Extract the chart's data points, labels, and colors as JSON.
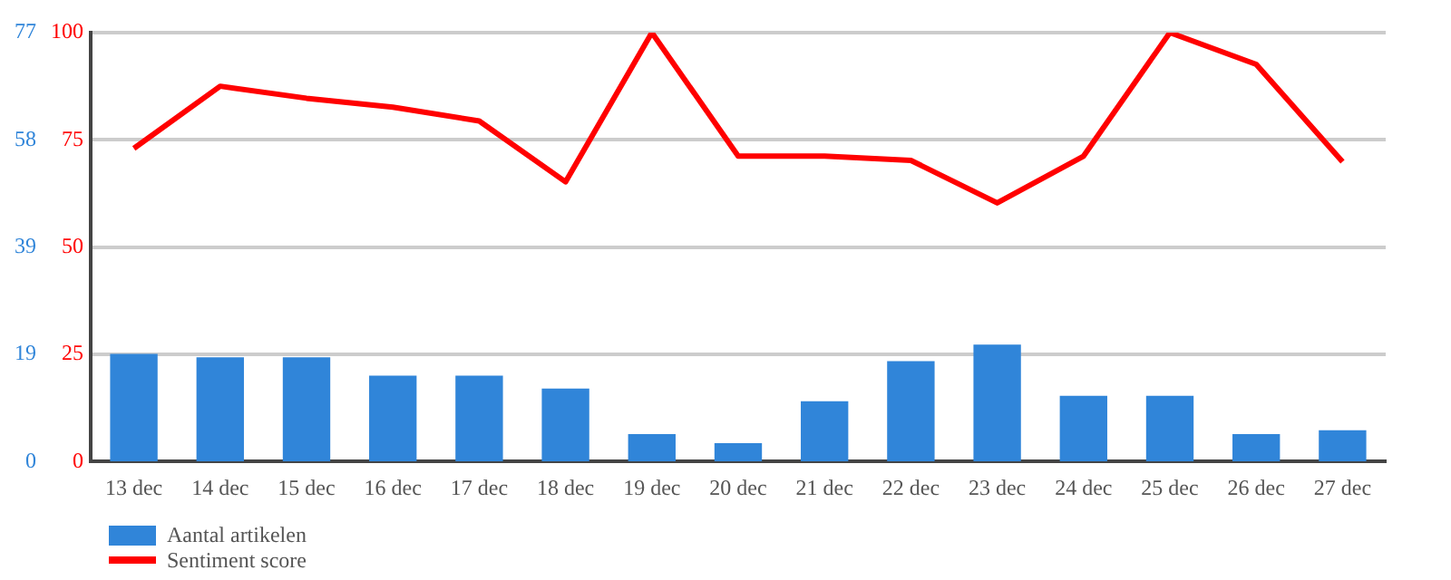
{
  "chart_data": {
    "type": "bar",
    "categories": [
      "13 dec",
      "14 dec",
      "15 dec",
      "16 dec",
      "17 dec",
      "18 dec",
      "19 dec",
      "20 dec",
      "21 dec",
      "22 dec",
      "23 dec",
      "24 dec",
      "25 dec",
      "26 dec",
      "27 dec"
    ],
    "series": [
      {
        "name": "Aantal artikelen",
        "color": "#3085d9",
        "values": [
          19.3,
          18.7,
          18.7,
          15.4,
          15.4,
          13.1,
          4.9,
          3.3,
          10.8,
          18,
          21,
          11.8,
          11.8,
          4.9,
          5.6
        ]
      },
      {
        "name": "Sentiment score",
        "type": "line",
        "axis": "y2",
        "color": "#ff0000",
        "values": [
          73,
          87.5,
          84.7,
          82.6,
          79.4,
          65.2,
          100,
          71.2,
          71.2,
          70.2,
          60.3,
          71.2,
          100,
          92.6,
          69.9
        ]
      }
    ],
    "ylim": [
      0,
      77
    ],
    "yticks": [
      0,
      {
        "value": 19.25,
        "label": "19"
      },
      {
        "value": 38.5,
        "label": "39"
      },
      {
        "value": 57.75,
        "label": "58"
      },
      77
    ],
    "y2lim": [
      0,
      100
    ],
    "y2ticks": [
      0,
      25,
      50,
      75,
      100
    ],
    "grid": "y",
    "legend": "bottom left",
    "marker": "none",
    "line_style": "solid"
  }
}
